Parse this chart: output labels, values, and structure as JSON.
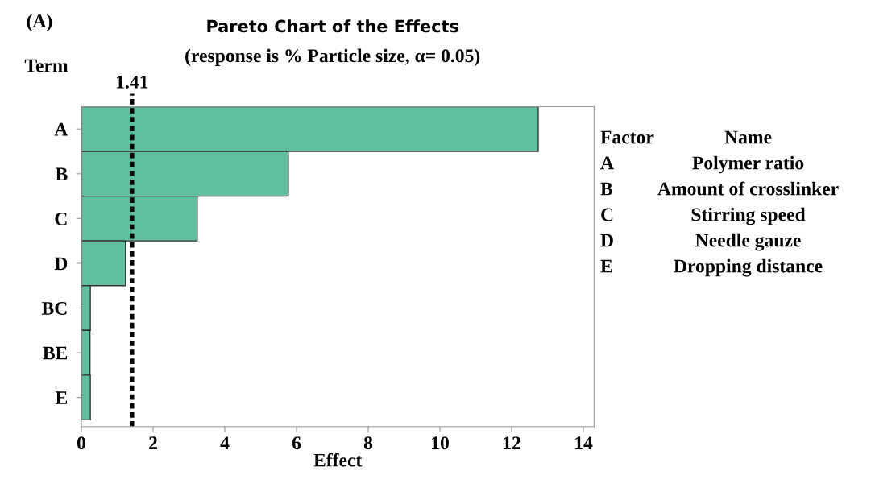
{
  "chart_data": {
    "type": "bar",
    "orientation": "horizontal",
    "title": "Pareto Chart of the Effects",
    "subtitle": "(response is % Particle size, α= 0.05)",
    "xlabel": "Effect",
    "ylabel": "Term",
    "categories": [
      "A",
      "B",
      "C",
      "D",
      "BC",
      "BE",
      "E"
    ],
    "series": [
      {
        "color": "#5fbf9f",
        "values": [
          12.74,
          5.77,
          3.23,
          1.23,
          0.25,
          0.24,
          0.25
        ]
      }
    ],
    "xlim": [
      0,
      14.3
    ],
    "xticks": [
      0,
      2,
      4,
      6,
      8,
      10,
      12,
      14
    ],
    "grid": false,
    "legend": false,
    "ref_lines": [
      {
        "axis": "x",
        "value": 1.41,
        "label": "1.41",
        "color": "#000000",
        "line_style": "dashed"
      }
    ],
    "annotations": [
      "(A)",
      "Factor",
      "Name",
      "A",
      "Polymer ratio",
      "B",
      "Amount of crosslinker",
      "C",
      "Stirring speed",
      "D",
      "Needle gauze",
      "E",
      "Dropping distance"
    ]
  }
}
